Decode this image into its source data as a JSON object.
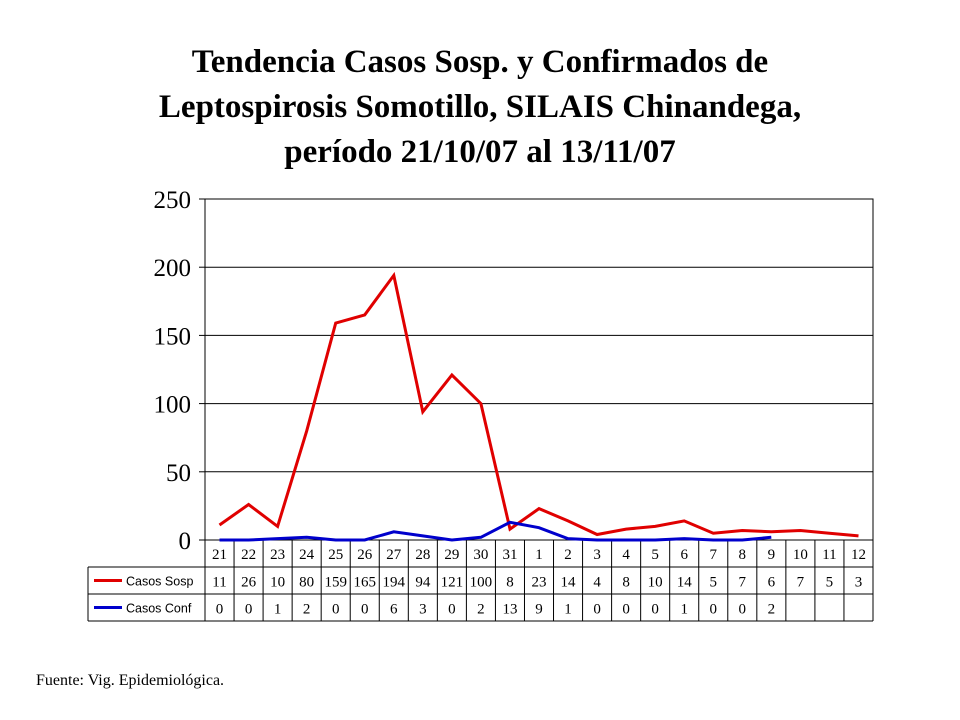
{
  "title_lines": [
    "Tendencia Casos Sosp.  y Confirmados de",
    "Leptospirosis Somotillo, SILAIS Chinandega,",
    "período 21/10/07 al 13/11/07"
  ],
  "source": "Fuente: Vig. Epidemiológica.",
  "colors": {
    "suspected": "#e00000",
    "confirmed": "#0000cc",
    "grid": "#000000"
  },
  "chart_data": {
    "type": "line",
    "title": "Tendencia Casos Sosp.  y Confirmados de Leptospirosis Somotillo, SILAIS Chinandega, período 21/10/07 al 13/11/07",
    "xlabel": "",
    "ylabel": "",
    "ylim": [
      0,
      250
    ],
    "yticks": [
      0,
      50,
      100,
      150,
      200,
      250
    ],
    "grid": true,
    "legend": "data table below chart",
    "categories": [
      "21",
      "22",
      "23",
      "24",
      "25",
      "26",
      "27",
      "28",
      "29",
      "30",
      "31",
      "1",
      "2",
      "3",
      "4",
      "5",
      "6",
      "7",
      "8",
      "9",
      "10",
      "11",
      "12"
    ],
    "series": [
      {
        "name": "Casos Sosp",
        "color": "#e00000",
        "values": [
          11,
          26,
          10,
          80,
          159,
          165,
          194,
          94,
          121,
          100,
          8,
          23,
          14,
          4,
          8,
          10,
          14,
          5,
          7,
          6,
          7,
          5,
          3
        ]
      },
      {
        "name": "Casos Conf",
        "color": "#0000cc",
        "values": [
          0,
          0,
          1,
          2,
          0,
          0,
          6,
          3,
          0,
          2,
          13,
          9,
          1,
          0,
          0,
          0,
          1,
          0,
          0,
          2,
          null,
          null,
          null
        ]
      }
    ]
  }
}
